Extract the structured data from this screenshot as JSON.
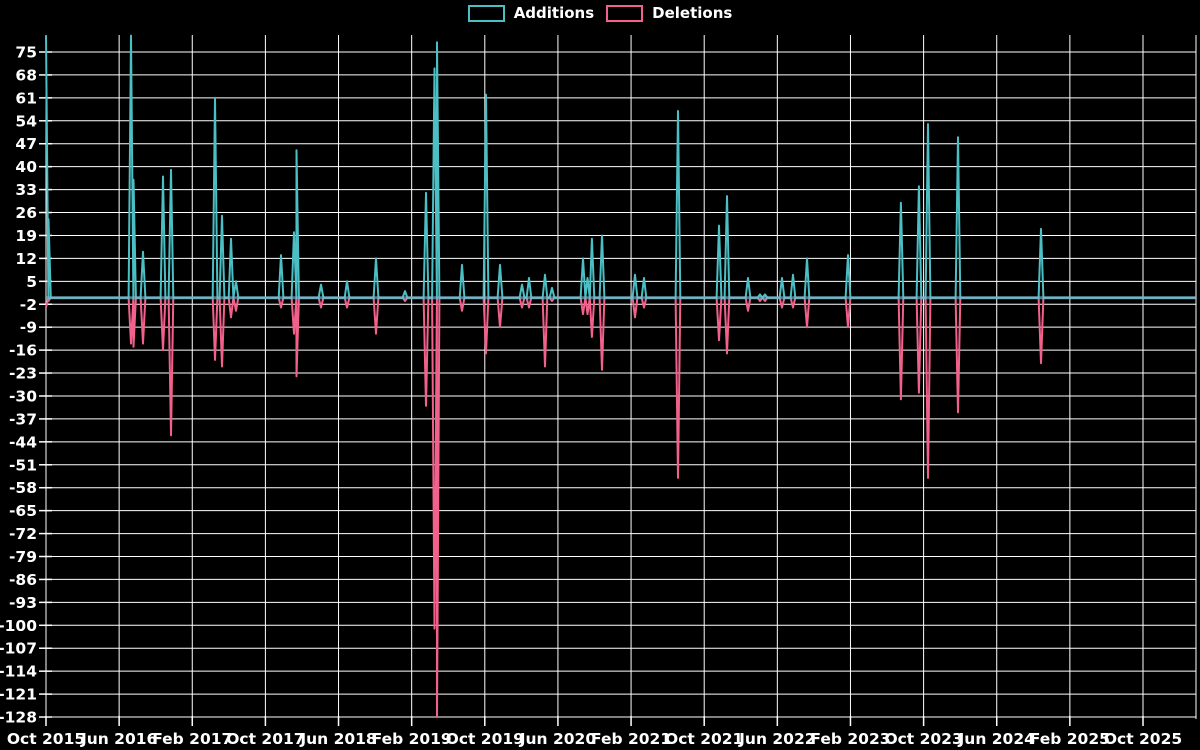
{
  "legend": {
    "items": [
      {
        "label": "Additions",
        "color": "#4bbfc4"
      },
      {
        "label": "Deletions",
        "color": "#f2618c"
      }
    ]
  },
  "chart_data": {
    "type": "line",
    "title": "",
    "subtitle": "",
    "grid": true,
    "background_color": "#000000",
    "legend_position": "top-center",
    "series_names": [
      "Additions",
      "Deletions"
    ],
    "colors": {
      "additions": "#4bbfc4",
      "deletions": "#f2618c",
      "grid": "#ffffff",
      "text": "#ffffff",
      "zero_baseline": "rgba(120,185,205,0.65)"
    },
    "x_axis": {
      "tick_labels": [
        "Oct 2015",
        "Jun 2016",
        "Feb 2017",
        "Oct 2017",
        "Jun 2018",
        "Feb 2019",
        "Oct 2019",
        "Jun 2020",
        "Feb 2021",
        "Oct 2021",
        "Jun 2022",
        "Feb 2023",
        "Oct 2023",
        "Jun 2024",
        "Feb 2025",
        "Oct 2025"
      ],
      "months_between_ticks": 8,
      "total_months_span": 125.8
    },
    "y_axis": {
      "tick_labels": [
        75,
        68,
        61,
        54,
        47,
        40,
        33,
        26,
        19,
        12,
        5,
        -2,
        -9,
        -16,
        -23,
        -30,
        -37,
        -44,
        -51,
        -58,
        -65,
        -72,
        -79,
        -86,
        -93,
        -100,
        -107,
        -114,
        -121,
        -128
      ],
      "min": -129,
      "max": 80
    },
    "baseline_value": 0,
    "spike_half_width_months": 0.26,
    "events_note": "m = months after Oct 2015; add/del = weekly additions/deletions spike values; flat 0 between events",
    "events": [
      {
        "m": 0,
        "add": 80,
        "del": -3
      },
      {
        "m": 0.27,
        "add": 24,
        "del": -1
      },
      {
        "m": 9.3,
        "add": 80,
        "del": -14
      },
      {
        "m": 9.57,
        "add": 36,
        "del": -15
      },
      {
        "m": 10.61,
        "add": 14,
        "del": -14
      },
      {
        "m": 12.8,
        "add": 37,
        "del": -16
      },
      {
        "m": 13.67,
        "add": 39,
        "del": -42
      },
      {
        "m": 18.49,
        "add": 61,
        "del": -19
      },
      {
        "m": 19.25,
        "add": 25,
        "del": -21
      },
      {
        "m": 20.24,
        "add": 18,
        "del": -6
      },
      {
        "m": 20.78,
        "add": 5,
        "del": -4
      },
      {
        "m": 25.71,
        "add": 13,
        "del": -3
      },
      {
        "m": 27.13,
        "add": 20,
        "del": -11
      },
      {
        "m": 27.4,
        "add": 45,
        "del": -24
      },
      {
        "m": 30.08,
        "add": 4,
        "del": -3
      },
      {
        "m": 32.93,
        "add": 5,
        "del": -3
      },
      {
        "m": 36.1,
        "add": 12,
        "del": -11
      },
      {
        "m": 39.27,
        "add": 2,
        "del": -1
      },
      {
        "m": 41.57,
        "add": 32,
        "del": -33
      },
      {
        "m": 42.5,
        "add": 70,
        "del": -101
      },
      {
        "m": 42.77,
        "add": 78,
        "del": -128
      },
      {
        "m": 45.51,
        "add": 10,
        "del": -4
      },
      {
        "m": 48.13,
        "add": 62,
        "del": -17
      },
      {
        "m": 49.66,
        "add": 10,
        "del": -9
      },
      {
        "m": 52.07,
        "add": 4,
        "del": -3
      },
      {
        "m": 52.83,
        "add": 6,
        "del": -3
      },
      {
        "m": 54.58,
        "add": 7,
        "del": -21
      },
      {
        "m": 55.35,
        "add": 3,
        "del": -1
      },
      {
        "m": 58.74,
        "add": 12,
        "del": -5
      },
      {
        "m": 59.23,
        "add": 6,
        "del": -5
      },
      {
        "m": 59.72,
        "add": 18,
        "del": -12
      },
      {
        "m": 60.82,
        "add": 19,
        "del": -22
      },
      {
        "m": 64.43,
        "add": 7,
        "del": -6
      },
      {
        "m": 65.41,
        "add": 6,
        "del": -3
      },
      {
        "m": 69.13,
        "add": 57,
        "del": -55
      },
      {
        "m": 73.62,
        "add": 22,
        "del": -13
      },
      {
        "m": 74.49,
        "add": 31,
        "del": -17
      },
      {
        "m": 76.79,
        "add": 6,
        "del": -4
      },
      {
        "m": 78.1,
        "add": 1,
        "del": -1
      },
      {
        "m": 78.65,
        "add": 1,
        "del": -1
      },
      {
        "m": 80.51,
        "add": 6,
        "del": -3
      },
      {
        "m": 81.71,
        "add": 7,
        "del": -3
      },
      {
        "m": 83.24,
        "add": 12,
        "del": -9
      },
      {
        "m": 87.73,
        "add": 13,
        "del": -9
      },
      {
        "m": 93.52,
        "add": 29,
        "del": -31
      },
      {
        "m": 95.49,
        "add": 34,
        "del": -29
      },
      {
        "m": 96.48,
        "add": 53,
        "del": -55
      },
      {
        "m": 99.76,
        "add": 49,
        "del": -35
      },
      {
        "m": 108.84,
        "add": 21,
        "del": -20
      }
    ]
  }
}
